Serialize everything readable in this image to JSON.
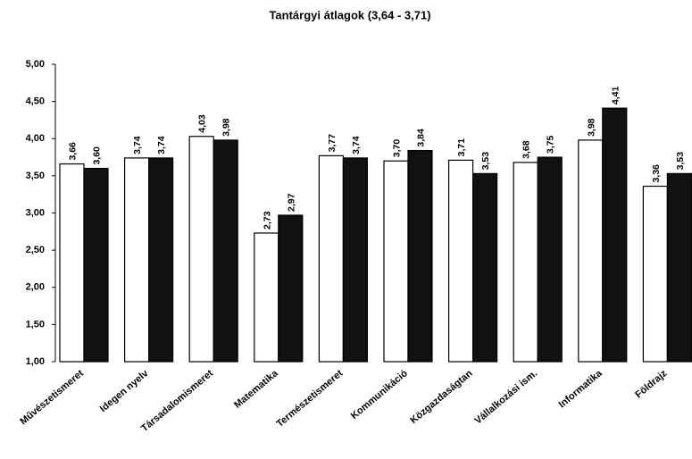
{
  "chart_data": {
    "type": "bar",
    "title": "Tantárgyi átlagok (3,64 - 3,71)",
    "categories": [
      "Művészetismeret",
      "Idegen nyelv",
      "Társadalomismeret",
      "Matematika",
      "Természetismeret",
      "Kommunikáció",
      "Közgazdaságtan",
      "Vállalkozási ism.",
      "Informatika",
      "Földrajz"
    ],
    "series": [
      {
        "color": "#ffffff",
        "values": [
          3.66,
          3.74,
          4.03,
          2.73,
          3.77,
          3.7,
          3.71,
          3.68,
          3.98,
          3.36
        ],
        "value_labels": [
          "3,66",
          "3,74",
          "4,03",
          "2,73",
          "3,77",
          "3,70",
          "3,71",
          "3,68",
          "3,98",
          "3,36"
        ]
      },
      {
        "color": "#111111",
        "values": [
          3.6,
          3.74,
          3.98,
          2.97,
          3.74,
          3.84,
          3.53,
          3.75,
          4.41,
          3.53
        ],
        "value_labels": [
          "3,60",
          "3,74",
          "3,98",
          "2,97",
          "3,74",
          "3,84",
          "3,53",
          "3,75",
          "4,41",
          "3,53"
        ]
      }
    ],
    "ylim": [
      1,
      5
    ],
    "yticks": [
      {
        "value": 1,
        "label": "1,00"
      },
      {
        "value": 1.5,
        "label": "1,50"
      },
      {
        "value": 2,
        "label": "2,00"
      },
      {
        "value": 2.5,
        "label": "2,50"
      },
      {
        "value": 3,
        "label": "3,00"
      },
      {
        "value": 3.5,
        "label": "3,50"
      },
      {
        "value": 4,
        "label": "4,00"
      },
      {
        "value": 4.5,
        "label": "4,50"
      },
      {
        "value": 5,
        "label": "5,00"
      }
    ],
    "grid": false
  }
}
